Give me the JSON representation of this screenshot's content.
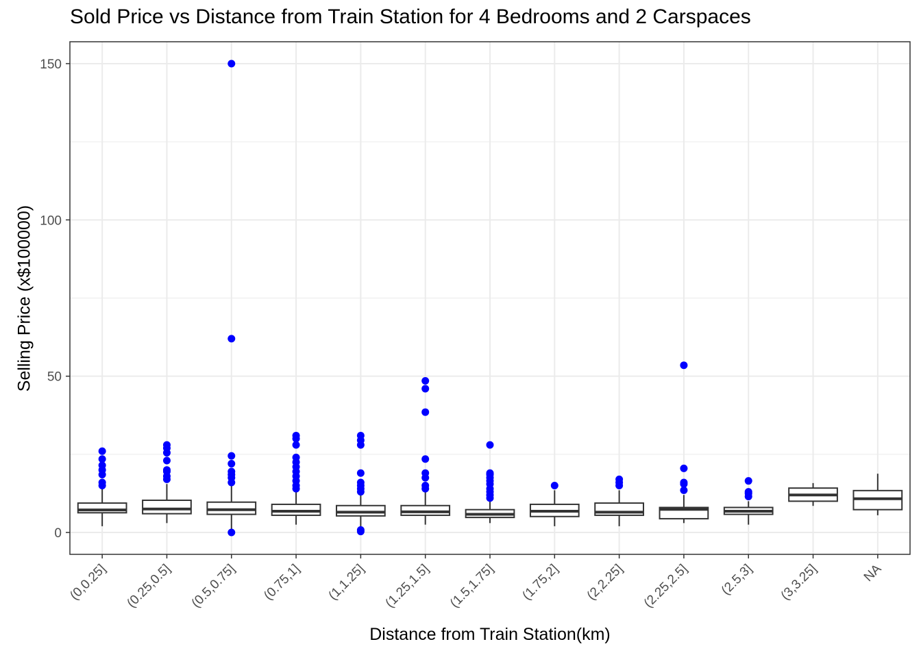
{
  "chart_data": {
    "type": "boxplot",
    "title": "Sold Price vs Distance from Train Station for 4 Bedrooms and 2 Carspaces",
    "xlabel": "Distance from Train Station(km)",
    "ylabel": "Selling Price (x$100000)",
    "ylim": [
      -7,
      157
    ],
    "yticks": [
      0,
      50,
      100,
      150
    ],
    "grid": true,
    "theme": "bw",
    "colors": {
      "box_stroke": "#333333",
      "outlier": "#0000ff",
      "grid": "#ebebeb",
      "panel_border": "#333333"
    },
    "categories": [
      "(0,0.25]",
      "(0.25,0.5]",
      "(0.5,0.75]",
      "(0.75,1]",
      "(1,1.25]",
      "(1.25,1.5]",
      "(1.5,1.75]",
      "(1.75,2]",
      "(2,2.25]",
      "(2.25,2.5]",
      "(2.5,3]",
      "(3,3.25]",
      "NA"
    ],
    "boxes": [
      {
        "category": "(0,0.25]",
        "min": 2.0,
        "q1": 6.3,
        "median": 7.2,
        "q3": 9.4,
        "max": 14.0,
        "outliers": [
          15.0,
          16.0,
          18.5,
          20.0,
          21.5,
          23.5,
          26.0
        ]
      },
      {
        "category": "(0.25,0.5]",
        "min": 3.0,
        "q1": 6.0,
        "median": 7.5,
        "q3": 10.3,
        "max": 15.5,
        "outliers": [
          17.0,
          18.0,
          19.5,
          20.0,
          23.0,
          25.5,
          27.0,
          28.0
        ]
      },
      {
        "category": "(0.5,0.75]",
        "min": 0.8,
        "q1": 5.8,
        "median": 7.3,
        "q3": 9.7,
        "max": 15.0,
        "outliers": [
          0.0,
          16.0,
          17.5,
          18.5,
          19.5,
          22.0,
          24.5,
          62.0,
          150.0
        ]
      },
      {
        "category": "(0.75,1]",
        "min": 2.5,
        "q1": 5.5,
        "median": 6.8,
        "q3": 9.0,
        "max": 13.5,
        "outliers": [
          14.0,
          15.0,
          16.5,
          18.0,
          19.5,
          21.0,
          22.5,
          24.0,
          28.0,
          30.0,
          31.0
        ]
      },
      {
        "category": "(1,1.25]",
        "min": 1.5,
        "q1": 5.3,
        "median": 6.5,
        "q3": 8.6,
        "max": 12.5,
        "outliers": [
          0.3,
          0.8,
          13.0,
          14.0,
          15.0,
          16.0,
          19.0,
          28.0,
          29.5,
          31.0
        ]
      },
      {
        "category": "(1.25,1.5]",
        "min": 2.5,
        "q1": 5.5,
        "median": 6.6,
        "q3": 8.6,
        "max": 13.0,
        "outliers": [
          14.0,
          15.0,
          17.5,
          19.0,
          23.5,
          38.5,
          46.0,
          48.5
        ]
      },
      {
        "category": "(1.5,1.75]",
        "min": 3.0,
        "q1": 4.8,
        "median": 5.8,
        "q3": 7.3,
        "max": 10.5,
        "outliers": [
          11.0,
          12.0,
          13.0,
          14.0,
          15.5,
          16.5,
          17.5,
          18.5,
          19.0,
          28.0
        ]
      },
      {
        "category": "(1.75,2]",
        "min": 2.0,
        "q1": 5.1,
        "median": 6.8,
        "q3": 9.0,
        "max": 13.5,
        "outliers": [
          15.0
        ]
      },
      {
        "category": "(2,2.25]",
        "min": 2.0,
        "q1": 5.5,
        "median": 6.5,
        "q3": 9.4,
        "max": 13.5,
        "outliers": [
          15.0,
          16.0,
          17.0
        ]
      },
      {
        "category": "(2.25,2.5]",
        "min": 3.0,
        "q1": 4.4,
        "median": 7.4,
        "q3": 8.0,
        "max": 12.0,
        "outliers": [
          13.5,
          15.5,
          16.0,
          20.5,
          53.5
        ]
      },
      {
        "category": "(2.5,3]",
        "min": 2.5,
        "q1": 5.8,
        "median": 6.8,
        "q3": 8.0,
        "max": 10.0,
        "outliers": [
          11.5,
          12.5,
          13.0,
          16.5
        ]
      },
      {
        "category": "(3,3.25]",
        "min": 8.5,
        "q1": 10.0,
        "median": 12.0,
        "q3": 14.2,
        "max": 15.8,
        "outliers": []
      },
      {
        "category": "NA",
        "min": 5.5,
        "q1": 7.3,
        "median": 10.8,
        "q3": 13.4,
        "max": 18.8,
        "outliers": []
      }
    ]
  }
}
